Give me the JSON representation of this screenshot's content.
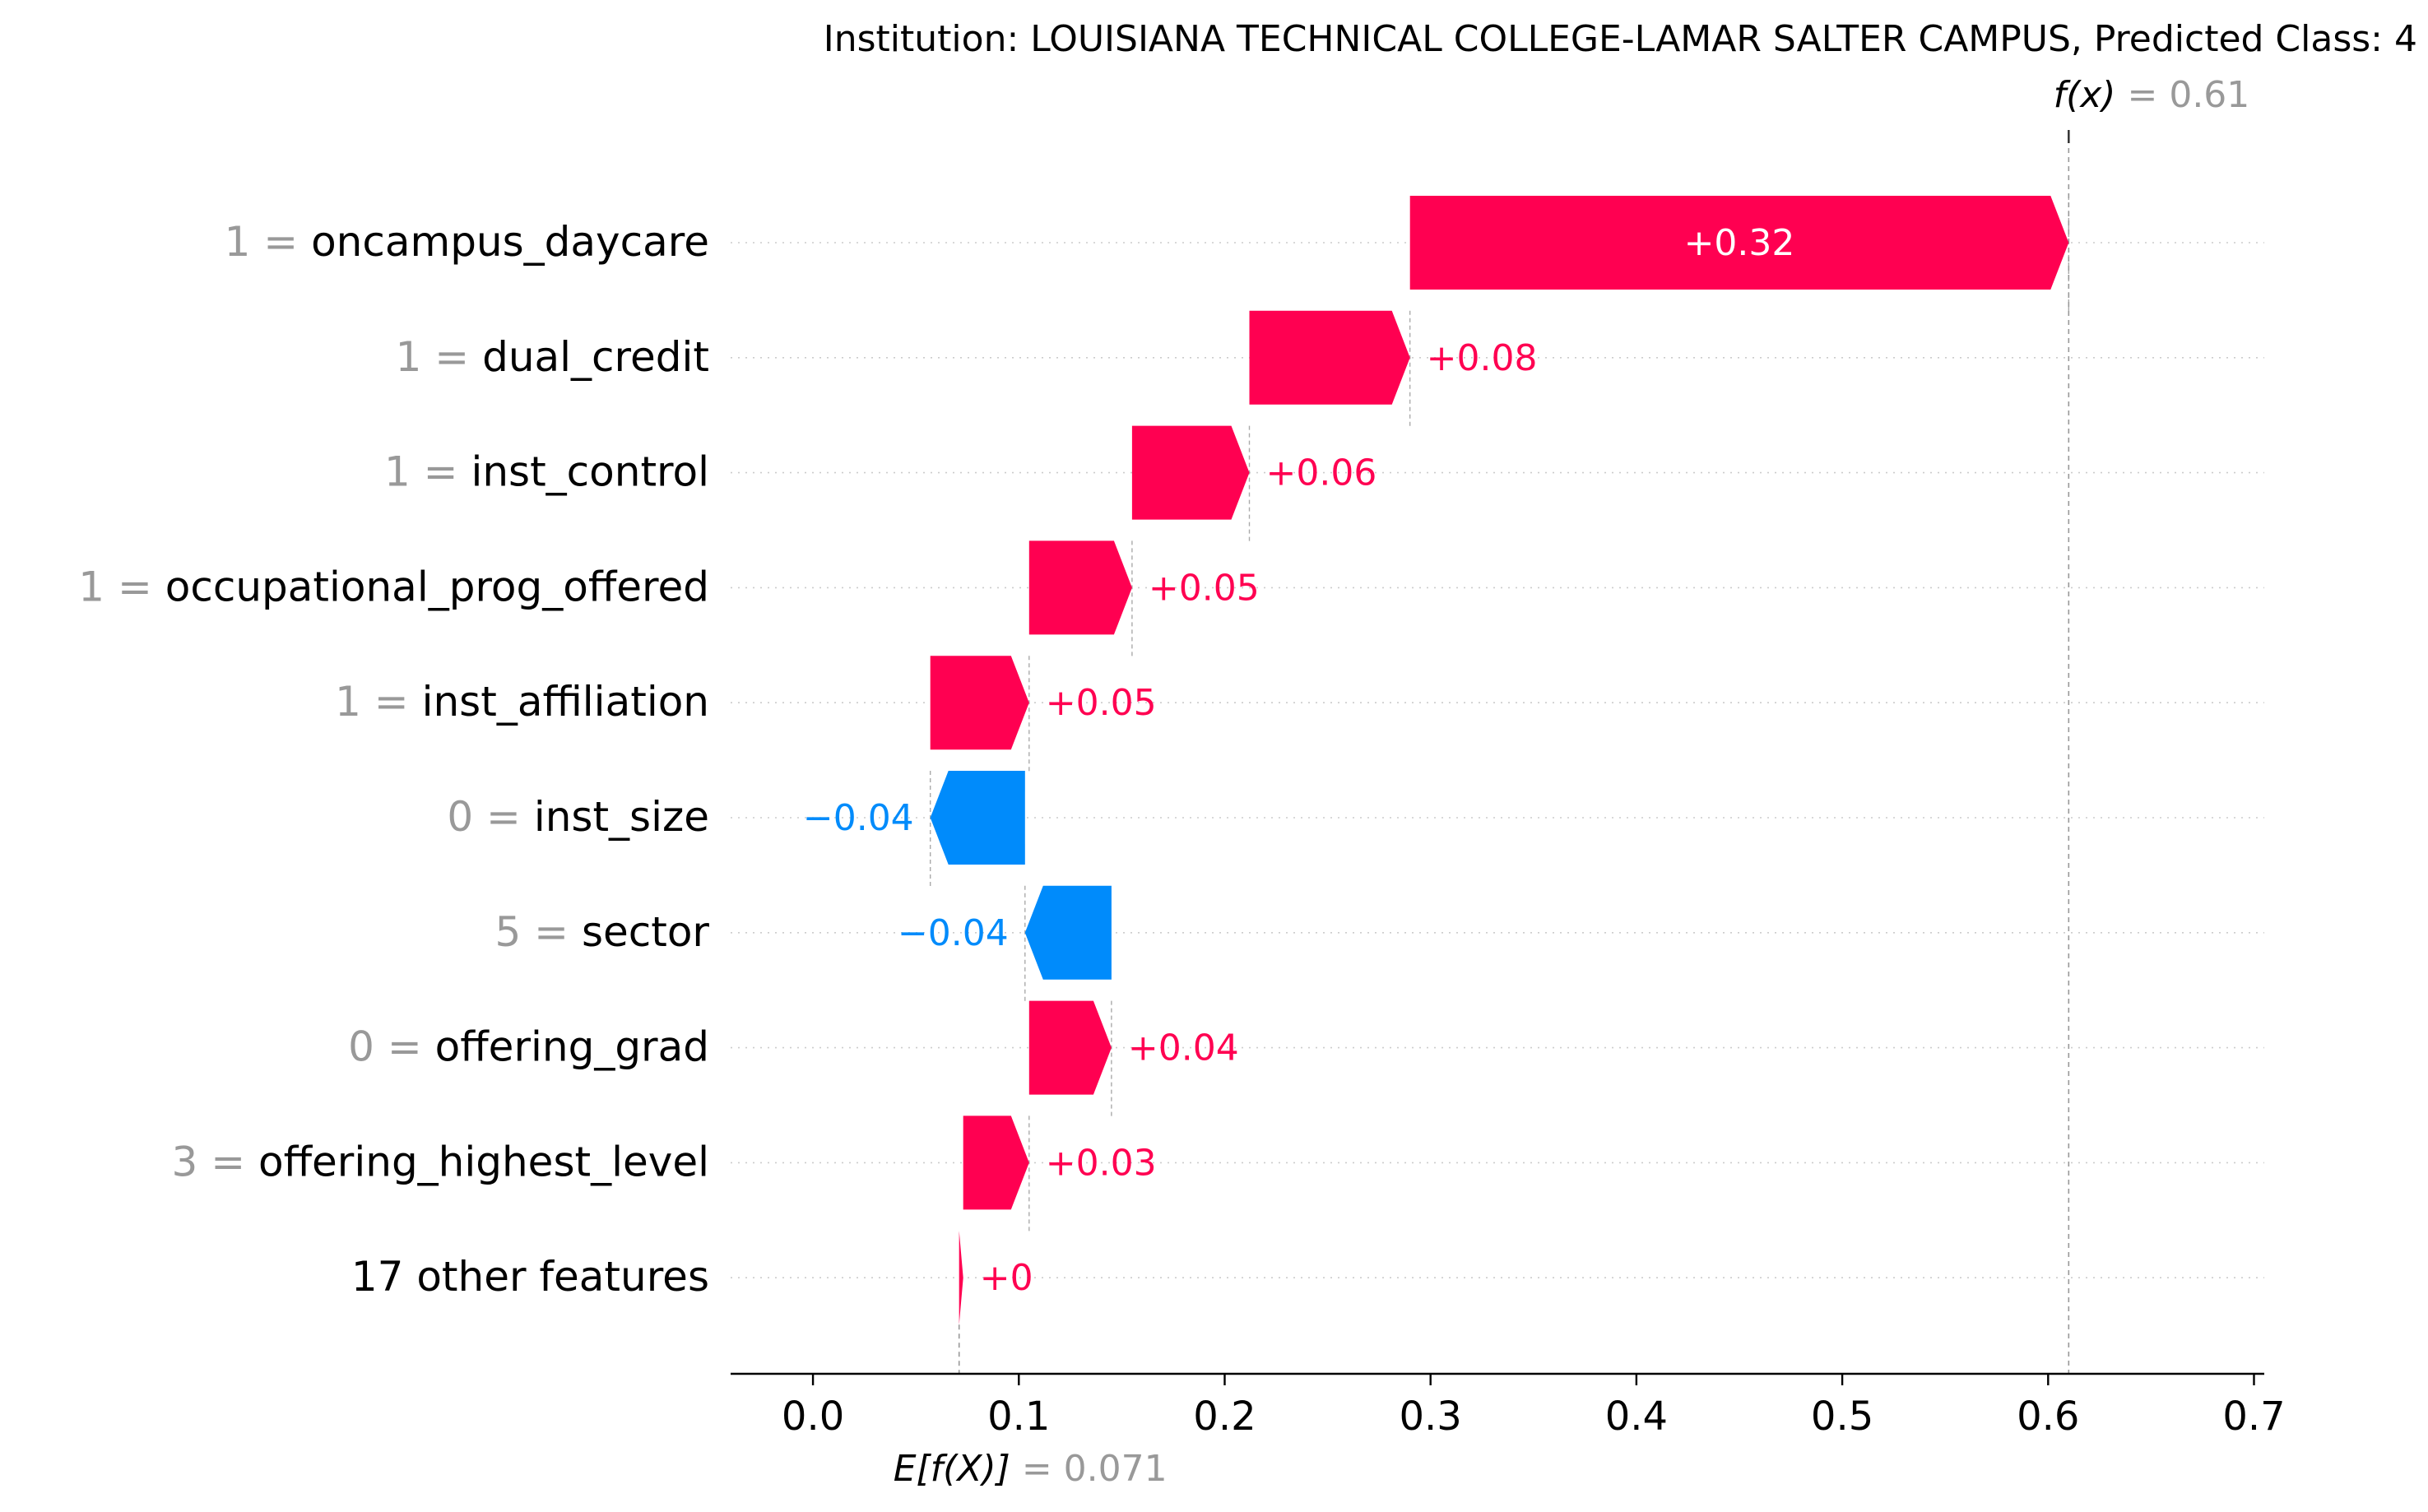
{
  "chart_data": {
    "type": "waterfall",
    "title": "Institution: LOUISIANA TECHNICAL COLLEGE-LAMAR SALTER CAMPUS, Predicted Class: 4",
    "fx": {
      "label": "f(x)",
      "value_text": "0.61",
      "value": 0.61
    },
    "base": {
      "label": "E[f(X)]",
      "value_text": "0.071",
      "value": 0.071
    },
    "xlim": [
      -0.04,
      0.705
    ],
    "x_ticks": [
      "0.0",
      "0.1",
      "0.2",
      "0.3",
      "0.4",
      "0.5",
      "0.6",
      "0.7"
    ],
    "colors": {
      "positive": "#ff0051",
      "negative": "#008bfb",
      "axis": "#000000",
      "label_gray": "#999999"
    },
    "features": [
      {
        "value": "1",
        "name": "oncampus_daycare",
        "start": 0.29,
        "end": 0.61,
        "label": "+0.32"
      },
      {
        "value": "1",
        "name": "dual_credit",
        "start": 0.212,
        "end": 0.29,
        "label": "+0.08"
      },
      {
        "value": "1",
        "name": "inst_control",
        "start": 0.155,
        "end": 0.212,
        "label": "+0.06"
      },
      {
        "value": "1",
        "name": "occupational_prog_offered",
        "start": 0.105,
        "end": 0.155,
        "label": "+0.05"
      },
      {
        "value": "1",
        "name": "inst_affiliation",
        "start": 0.057,
        "end": 0.105,
        "label": "+0.05"
      },
      {
        "value": "0",
        "name": "inst_size",
        "start": 0.103,
        "end": 0.057,
        "label": "−0.04"
      },
      {
        "value": "5",
        "name": "sector",
        "start": 0.145,
        "end": 0.103,
        "label": "−0.04"
      },
      {
        "value": "0",
        "name": "offering_grad",
        "start": 0.105,
        "end": 0.145,
        "label": "+0.04"
      },
      {
        "value": "3",
        "name": "offering_highest_level",
        "start": 0.073,
        "end": 0.105,
        "label": "+0.03"
      },
      {
        "value": "",
        "name": "17 other features",
        "start": 0.071,
        "end": 0.073,
        "label": "+0"
      }
    ]
  }
}
